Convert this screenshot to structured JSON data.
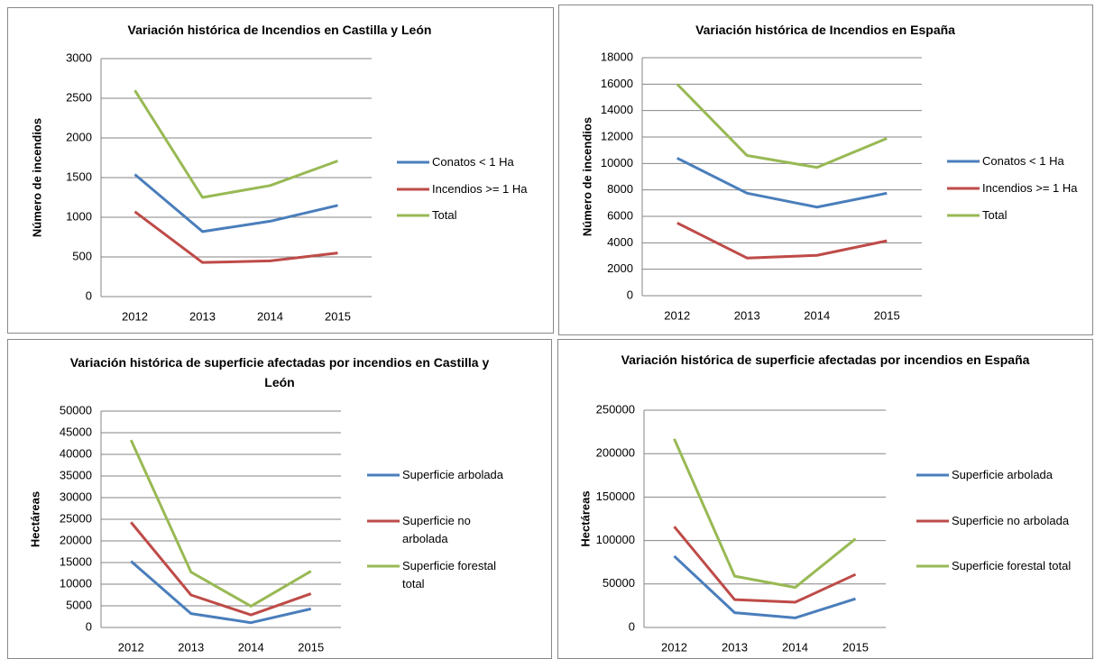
{
  "chart_data": [
    {
      "type": "line",
      "title": "Variación histórica de Incendios en Castilla y León",
      "y_label": "Número de incendios",
      "categories": [
        "2012",
        "2013",
        "2014",
        "2015"
      ],
      "ylim": [
        0,
        3000
      ],
      "yticks": [
        0,
        500,
        1000,
        1500,
        2000,
        2500,
        3000
      ],
      "grid": true,
      "legend": "right",
      "series": [
        {
          "name": "Conatos < 1 Ha",
          "color": "#4a7ebb",
          "values": [
            1540,
            820,
            950,
            1150
          ]
        },
        {
          "name": "Incendios >= 1 Ha",
          "color": "#be4b48",
          "values": [
            1070,
            430,
            450,
            550
          ]
        },
        {
          "name": "Total",
          "color": "#98b954",
          "values": [
            2600,
            1250,
            1400,
            1710
          ]
        }
      ]
    },
    {
      "type": "line",
      "title": "Variación histórica de Incendios en España",
      "y_label": "Número de incendios",
      "categories": [
        "2012",
        "2013",
        "2014",
        "2015"
      ],
      "ylim": [
        0,
        18000
      ],
      "yticks": [
        0,
        2000,
        4000,
        6000,
        8000,
        10000,
        12000,
        14000,
        16000,
        18000
      ],
      "grid": true,
      "legend": "right",
      "series": [
        {
          "name": "Conatos < 1 Ha",
          "color": "#4a7ebb",
          "values": [
            10400,
            7750,
            6700,
            7750
          ]
        },
        {
          "name": "Incendios >= 1 Ha",
          "color": "#be4b48",
          "values": [
            5500,
            2850,
            3050,
            4150
          ]
        },
        {
          "name": "Total",
          "color": "#98b954",
          "values": [
            16000,
            10600,
            9700,
            11900
          ]
        }
      ]
    },
    {
      "type": "line",
      "title": "Variación histórica de superficie afectadas por incendios en Castilla y León",
      "y_label": "Hectáreas",
      "categories": [
        "2012",
        "2013",
        "2014",
        "2015"
      ],
      "ylim": [
        0,
        50000
      ],
      "yticks": [
        0,
        5000,
        10000,
        15000,
        20000,
        25000,
        30000,
        35000,
        40000,
        45000,
        50000
      ],
      "grid": true,
      "legend": "right",
      "series": [
        {
          "name": "Superficie arbolada",
          "color": "#4a7ebb",
          "values": [
            15300,
            3200,
            1100,
            4300
          ]
        },
        {
          "name": "Superficie no arbolada",
          "color": "#be4b48",
          "values": [
            24300,
            7500,
            2900,
            7800
          ]
        },
        {
          "name": "Superficie forestal total",
          "color": "#98b954",
          "values": [
            43300,
            12800,
            4900,
            13000
          ]
        }
      ]
    },
    {
      "type": "line",
      "title": "Variación histórica de superficie afectadas por incendios en España",
      "y_label": "Hectáreas",
      "categories": [
        "2012",
        "2013",
        "2014",
        "2015"
      ],
      "ylim": [
        0,
        250000
      ],
      "yticks": [
        0,
        50000,
        100000,
        150000,
        200000,
        250000
      ],
      "grid": true,
      "legend": "right",
      "series": [
        {
          "name": "Superficie arbolada",
          "color": "#4a7ebb",
          "values": [
            82000,
            17000,
            11000,
            33000
          ]
        },
        {
          "name": "Superficie no arbolada",
          "color": "#be4b48",
          "values": [
            116000,
            32000,
            29000,
            61000
          ]
        },
        {
          "name": "Superficie forestal total",
          "color": "#98b954",
          "values": [
            217000,
            59000,
            46000,
            102000
          ]
        }
      ]
    }
  ]
}
